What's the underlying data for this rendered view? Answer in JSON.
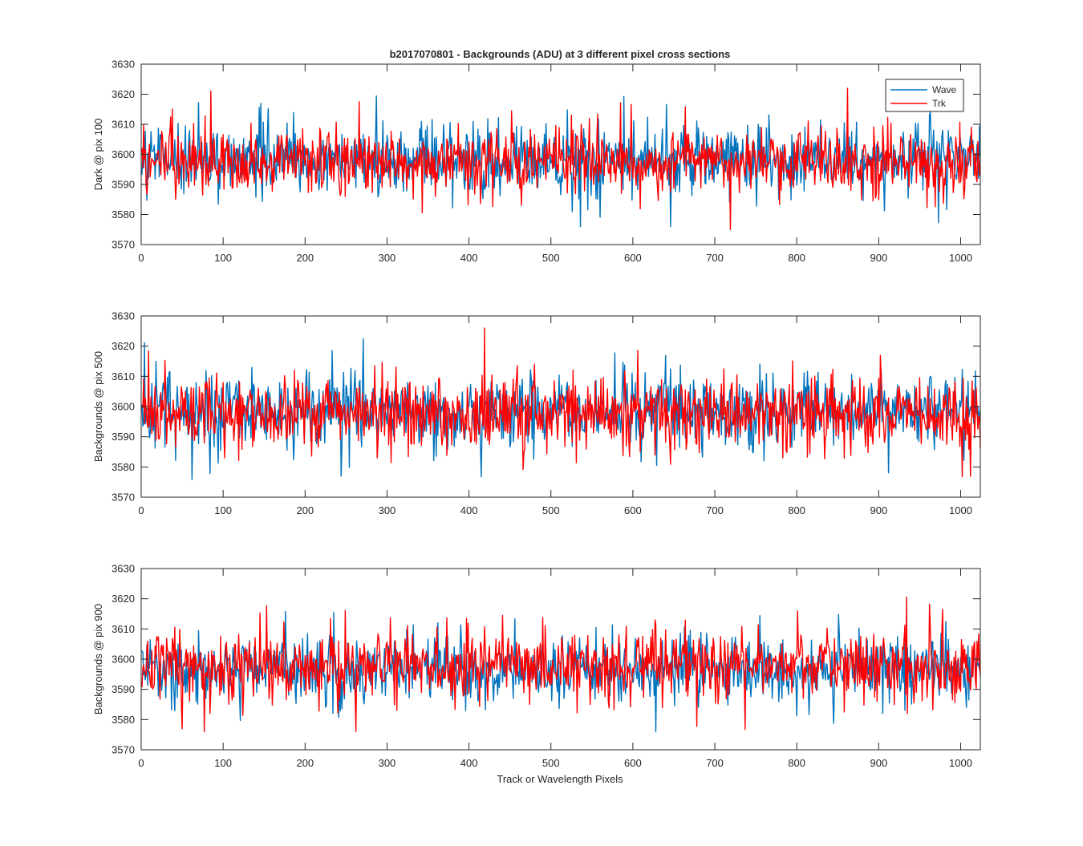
{
  "figure": {
    "title": "b2017070801 - Backgrounds (ADU) at 3 different pixel cross sections",
    "xlabel": "Track or Wavelength Pixels"
  },
  "legend": {
    "placement": "top-right of first panel",
    "entries": [
      {
        "label": "Wave",
        "color": "#0072BD"
      },
      {
        "label": "Trk",
        "color": "#FF0000"
      }
    ]
  },
  "chart_data": [
    {
      "type": "line",
      "ylabel": "Dark @ pix 100",
      "xlim": [
        0,
        1024
      ],
      "ylim": [
        3570,
        3630
      ],
      "xticks": [
        "0",
        "100",
        "200",
        "300",
        "400",
        "500",
        "600",
        "700",
        "800",
        "900",
        "1000"
      ],
      "yticks": [
        "3570",
        "3580",
        "3590",
        "3600",
        "3610",
        "3620",
        "3630"
      ],
      "grid": false,
      "series": [
        {
          "name": "Wave",
          "color": "#0072BD",
          "mean": 3598.5,
          "spread": 6.5,
          "min": 3576,
          "max": 3625
        },
        {
          "name": "Trk",
          "color": "#FF0000",
          "mean": 3597.5,
          "spread": 6.0,
          "min": 3575,
          "max": 3624
        }
      ]
    },
    {
      "type": "line",
      "ylabel": "Backgrounds @ pix 500",
      "xlim": [
        0,
        1024
      ],
      "ylim": [
        3570,
        3630
      ],
      "xticks": [
        "0",
        "100",
        "200",
        "300",
        "400",
        "500",
        "600",
        "700",
        "800",
        "900",
        "1000"
      ],
      "yticks": [
        "3570",
        "3580",
        "3590",
        "3600",
        "3610",
        "3620",
        "3630"
      ],
      "grid": false,
      "series": [
        {
          "name": "Wave",
          "color": "#0072BD",
          "mean": 3598.5,
          "spread": 6.5,
          "min": 3575,
          "max": 3624
        },
        {
          "name": "Trk",
          "color": "#FF0000",
          "mean": 3598.0,
          "spread": 7.0,
          "min": 3574,
          "max": 3626
        }
      ]
    },
    {
      "type": "line",
      "ylabel": "Backgrounds @ pix 900",
      "xlim": [
        0,
        1024
      ],
      "ylim": [
        3570,
        3630
      ],
      "xticks": [
        "0",
        "100",
        "200",
        "300",
        "400",
        "500",
        "600",
        "700",
        "800",
        "900",
        "1000"
      ],
      "yticks": [
        "3570",
        "3580",
        "3590",
        "3600",
        "3610",
        "3620",
        "3630"
      ],
      "grid": false,
      "series": [
        {
          "name": "Wave",
          "color": "#0072BD",
          "mean": 3596.5,
          "spread": 6.0,
          "min": 3572,
          "max": 3620
        },
        {
          "name": "Trk",
          "color": "#FF0000",
          "mean": 3598.0,
          "spread": 6.5,
          "min": 3576,
          "max": 3623
        }
      ]
    }
  ]
}
